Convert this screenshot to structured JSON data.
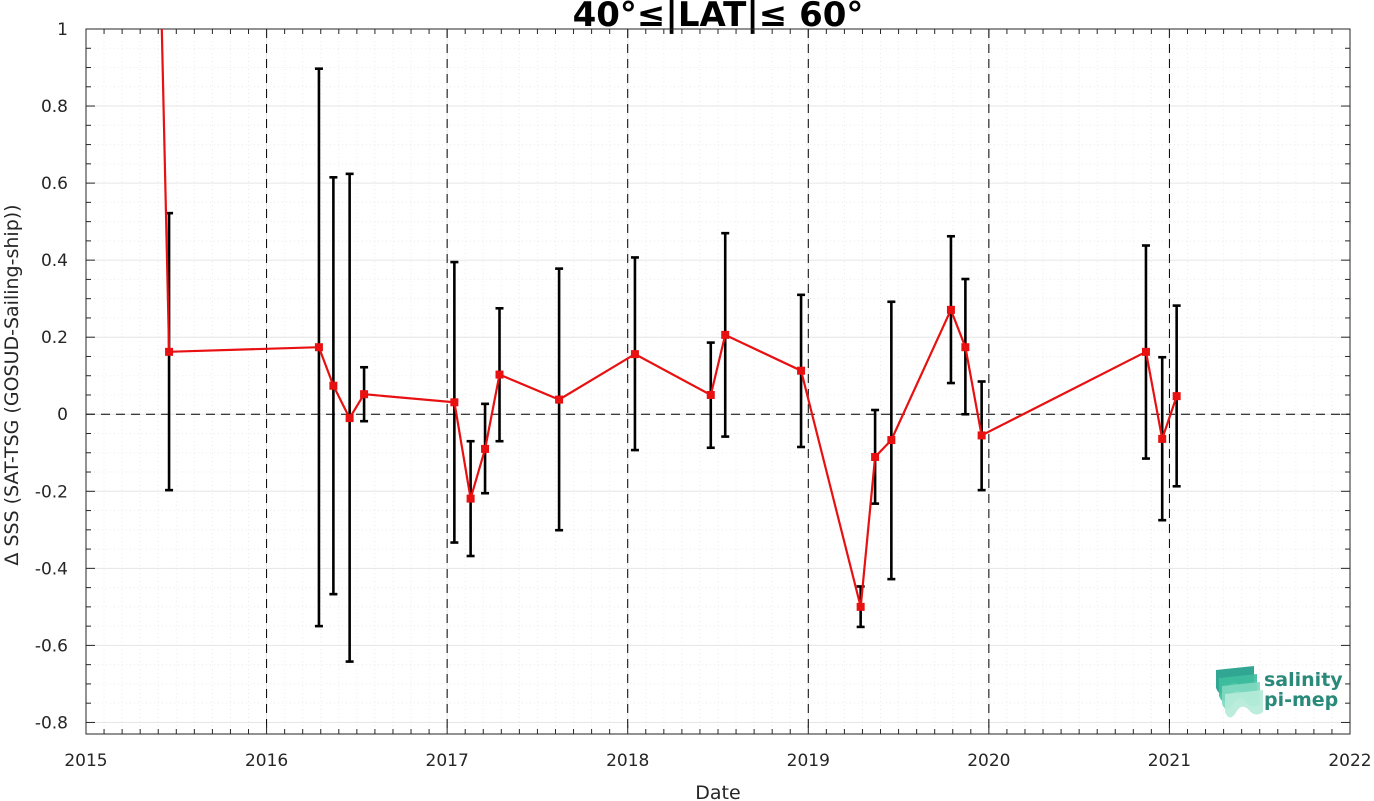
{
  "chart_data": {
    "type": "line",
    "title": "40°≤|LAT|≤ 60°",
    "xlabel": "Date",
    "ylabel": "Δ SSS (SAT-TSG (GOSUD-Sailing-ship))",
    "xlim": [
      2015,
      2022
    ],
    "ylim": [
      -0.83,
      1.0
    ],
    "x_ticks": [
      "2015",
      "2016",
      "2017",
      "2018",
      "2019",
      "2020",
      "2021",
      "2022"
    ],
    "y_ticks": [
      "1",
      "0.8",
      "0.6",
      "0.4",
      "0.2",
      "0",
      "-0.2",
      "-0.4",
      "-0.6",
      "-0.8"
    ],
    "grid": true,
    "year_dividers": [
      2016,
      2017,
      2018,
      2019,
      2020,
      2021
    ],
    "zero_line": 0,
    "series": [
      {
        "line_color": "#e81010",
        "errorbar_color": "#000000",
        "start_segment": {
          "x": 2015.42,
          "y": 1.0
        },
        "points": [
          {
            "x": 2015.46,
            "y": 0.162,
            "lo": -0.197,
            "hi": 0.522
          },
          {
            "x": 2016.29,
            "y": 0.174,
            "lo": -0.55,
            "hi": 0.897
          },
          {
            "x": 2016.37,
            "y": 0.074,
            "lo": -0.467,
            "hi": 0.615
          },
          {
            "x": 2016.46,
            "y": -0.01,
            "lo": -0.642,
            "hi": 0.624
          },
          {
            "x": 2016.54,
            "y": 0.052,
            "lo": -0.018,
            "hi": 0.122
          },
          {
            "x": 2017.04,
            "y": 0.031,
            "lo": -0.333,
            "hi": 0.395
          },
          {
            "x": 2017.13,
            "y": -0.219,
            "lo": -0.368,
            "hi": -0.07
          },
          {
            "x": 2017.21,
            "y": -0.09,
            "lo": -0.205,
            "hi": 0.027
          },
          {
            "x": 2017.29,
            "y": 0.103,
            "lo": -0.07,
            "hi": 0.275
          },
          {
            "x": 2017.62,
            "y": 0.038,
            "lo": -0.301,
            "hi": 0.378
          },
          {
            "x": 2018.04,
            "y": 0.156,
            "lo": -0.093,
            "hi": 0.407
          },
          {
            "x": 2018.46,
            "y": 0.05,
            "lo": -0.087,
            "hi": 0.186
          },
          {
            "x": 2018.54,
            "y": 0.206,
            "lo": -0.058,
            "hi": 0.47
          },
          {
            "x": 2018.96,
            "y": 0.113,
            "lo": -0.085,
            "hi": 0.31
          },
          {
            "x": 2019.29,
            "y": -0.5,
            "lo": -0.552,
            "hi": -0.447
          },
          {
            "x": 2019.37,
            "y": -0.111,
            "lo": -0.232,
            "hi": 0.011
          },
          {
            "x": 2019.46,
            "y": -0.067,
            "lo": -0.428,
            "hi": 0.292
          },
          {
            "x": 2019.79,
            "y": 0.271,
            "lo": 0.081,
            "hi": 0.462
          },
          {
            "x": 2019.87,
            "y": 0.174,
            "lo": 0.0,
            "hi": 0.351
          },
          {
            "x": 2019.96,
            "y": -0.055,
            "lo": -0.197,
            "hi": 0.085
          },
          {
            "x": 2020.87,
            "y": 0.162,
            "lo": -0.115,
            "hi": 0.438
          },
          {
            "x": 2020.96,
            "y": -0.064,
            "lo": -0.275,
            "hi": 0.148
          },
          {
            "x": 2021.04,
            "y": 0.047,
            "lo": -0.187,
            "hi": 0.282
          }
        ]
      }
    ]
  },
  "logo": {
    "line1": "salinity",
    "line2": "pi-mep",
    "colors": [
      "#1f9e89",
      "#3fbf9f",
      "#7fd9c0",
      "#b5ead9"
    ]
  }
}
